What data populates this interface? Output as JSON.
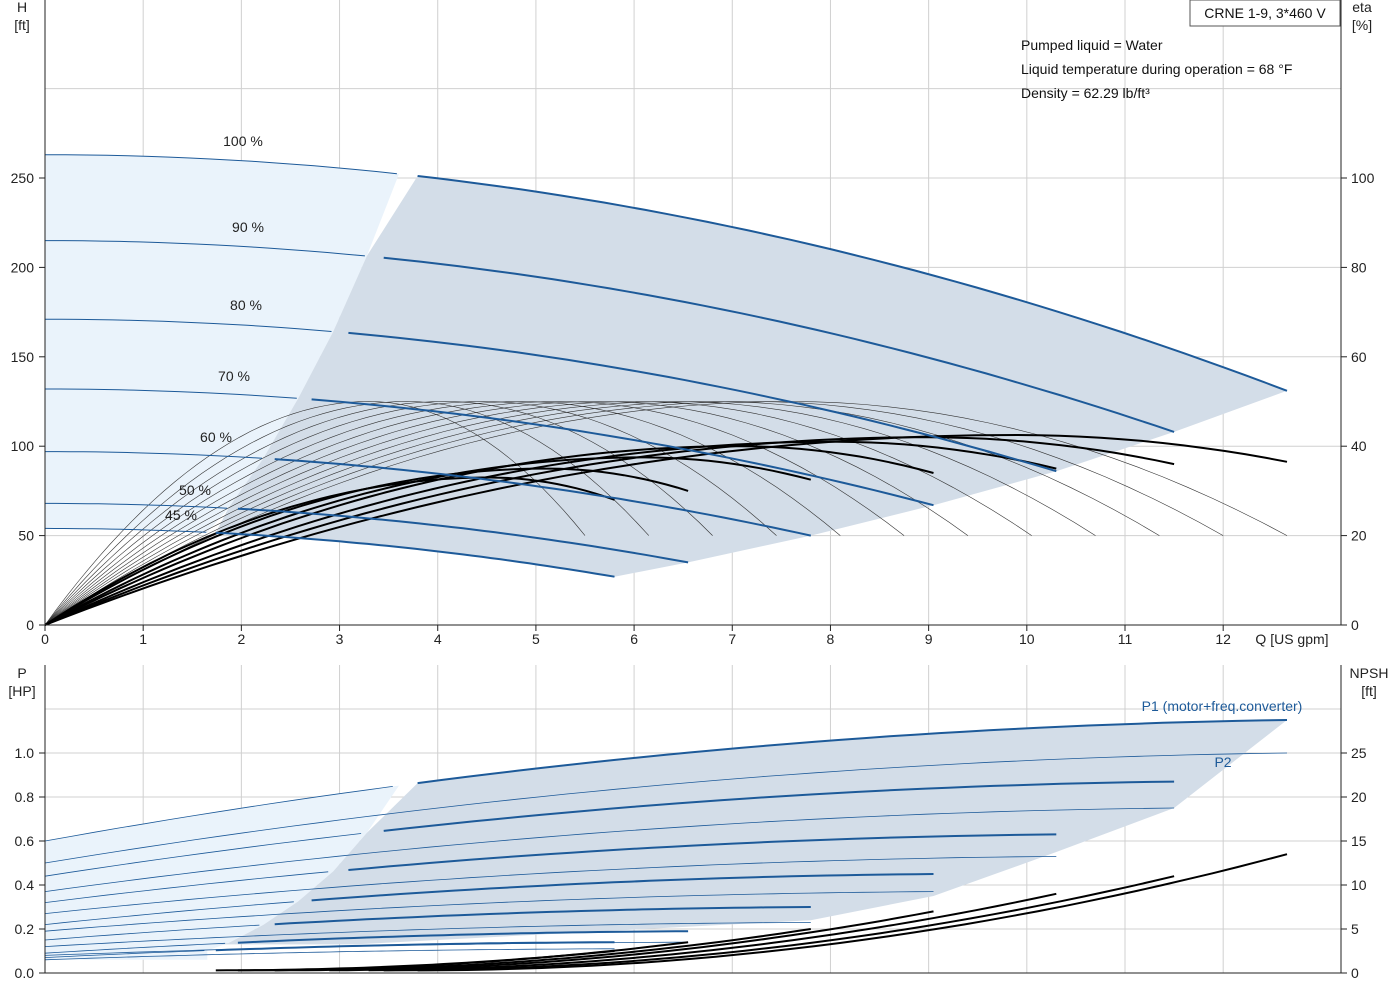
{
  "chart_data": [
    {
      "id": "head",
      "type": "line",
      "title": "CRNE 1-9, 3*460 V",
      "info": [
        "Pumped liquid = Water",
        "Liquid temperature during operation = 68 °F",
        "Density = 62.29 lb/ft³"
      ],
      "xlabel": "Q [US gpm]",
      "ylabel_left": [
        "H",
        "[ft]"
      ],
      "ylabel_right": [
        "eta",
        "[%]"
      ],
      "xlim": [
        0,
        13.2
      ],
      "ylim": [
        0,
        300
      ],
      "y2lim": [
        0,
        120
      ],
      "xticks": [
        0,
        1,
        2,
        3,
        4,
        5,
        6,
        7,
        8,
        9,
        10,
        11,
        12
      ],
      "yticks": [
        0,
        50,
        100,
        150,
        200,
        250
      ],
      "y2ticks": [
        0,
        20,
        40,
        60,
        80,
        100
      ],
      "grid": true,
      "colors": {
        "curve": "#1d5a99",
        "eff": "#000000",
        "op_area": "#d3dde8",
        "ext_area": "#eaf3fb"
      },
      "head_curves": [
        {
          "speed": "100 %",
          "shutoff": 263,
          "q_max": 12.65,
          "h_end": 131
        },
        {
          "speed": "90 %",
          "shutoff": 215,
          "q_max": 11.5,
          "h_end": 108
        },
        {
          "speed": "80 %",
          "shutoff": 171,
          "q_max": 10.3,
          "h_end": 86
        },
        {
          "speed": "70 %",
          "shutoff": 132,
          "q_max": 9.05,
          "h_end": 67
        },
        {
          "speed": "60 %",
          "shutoff": 97,
          "q_max": 7.8,
          "h_end": 50
        },
        {
          "speed": "50 %",
          "shutoff": 68,
          "q_max": 6.55,
          "h_end": 35
        },
        {
          "speed": "45 %",
          "shutoff": 54,
          "q_max": 5.8,
          "h_end": 27
        }
      ],
      "efficiency_curves": [
        {
          "q_max": 12.65,
          "eta_end": 36.5
        },
        {
          "q_max": 11.5,
          "eta_end": 36
        },
        {
          "q_max": 10.3,
          "eta_end": 35
        },
        {
          "q_max": 9.05,
          "eta_end": 34
        },
        {
          "q_max": 7.8,
          "eta_end": 32.5
        },
        {
          "q_max": 6.55,
          "eta_end": 30
        },
        {
          "q_max": 5.8,
          "eta_end": 28
        }
      ]
    },
    {
      "id": "power",
      "type": "line",
      "xlim": [
        0,
        13.2
      ],
      "ylabel_left": [
        "P",
        "[HP]"
      ],
      "ylabel_right": [
        "NPSH",
        "[ft]"
      ],
      "ylim": [
        0,
        1.2
      ],
      "y2lim": [
        0,
        30
      ],
      "yticks": [
        0.0,
        0.2,
        0.4,
        0.6,
        0.8,
        1.0
      ],
      "yticklabels": [
        "0.0",
        "0.2",
        "0.4",
        "0.6",
        "0.8",
        "1.0"
      ],
      "y2ticks": [
        0,
        5,
        10,
        15,
        20,
        25
      ],
      "grid": true,
      "series_labels": {
        "p1": "P1 (motor+freq.converter)",
        "p2": "P2"
      },
      "p1_curves": [
        {
          "q_max": 12.65,
          "p0": 0.6,
          "p_end": 1.15
        },
        {
          "q_max": 11.5,
          "p0": 0.44,
          "p_end": 0.87
        },
        {
          "q_max": 10.3,
          "p0": 0.32,
          "p_end": 0.63
        },
        {
          "q_max": 9.05,
          "p0": 0.22,
          "p_end": 0.45
        },
        {
          "q_max": 7.8,
          "p0": 0.15,
          "p_end": 0.3
        },
        {
          "q_max": 6.55,
          "p0": 0.09,
          "p_end": 0.19
        },
        {
          "q_max": 5.8,
          "p0": 0.07,
          "p_end": 0.14
        }
      ],
      "p2_curves": [
        {
          "q_max": 12.65,
          "p0": 0.5,
          "p_end": 1.0
        },
        {
          "q_max": 11.5,
          "p0": 0.37,
          "p_end": 0.75
        },
        {
          "q_max": 10.3,
          "p0": 0.27,
          "p_end": 0.53
        },
        {
          "q_max": 9.05,
          "p0": 0.19,
          "p_end": 0.37
        },
        {
          "q_max": 7.8,
          "p0": 0.12,
          "p_end": 0.23
        },
        {
          "q_max": 6.55,
          "p0": 0.08,
          "p_end": 0.14
        },
        {
          "q_max": 5.8,
          "p0": 0.06,
          "p_end": 0.11
        }
      ],
      "npsh_curves": [
        {
          "q_max": 12.65,
          "npsh_end": 13.5
        },
        {
          "q_max": 11.5,
          "npsh_end": 11
        },
        {
          "q_max": 10.3,
          "npsh_end": 9
        },
        {
          "q_max": 9.05,
          "npsh_end": 7
        },
        {
          "q_max": 7.8,
          "npsh_end": 5
        },
        {
          "q_max": 6.55,
          "npsh_end": 3.5
        },
        {
          "q_max": 5.8,
          "npsh_end": 2.5
        }
      ]
    }
  ]
}
